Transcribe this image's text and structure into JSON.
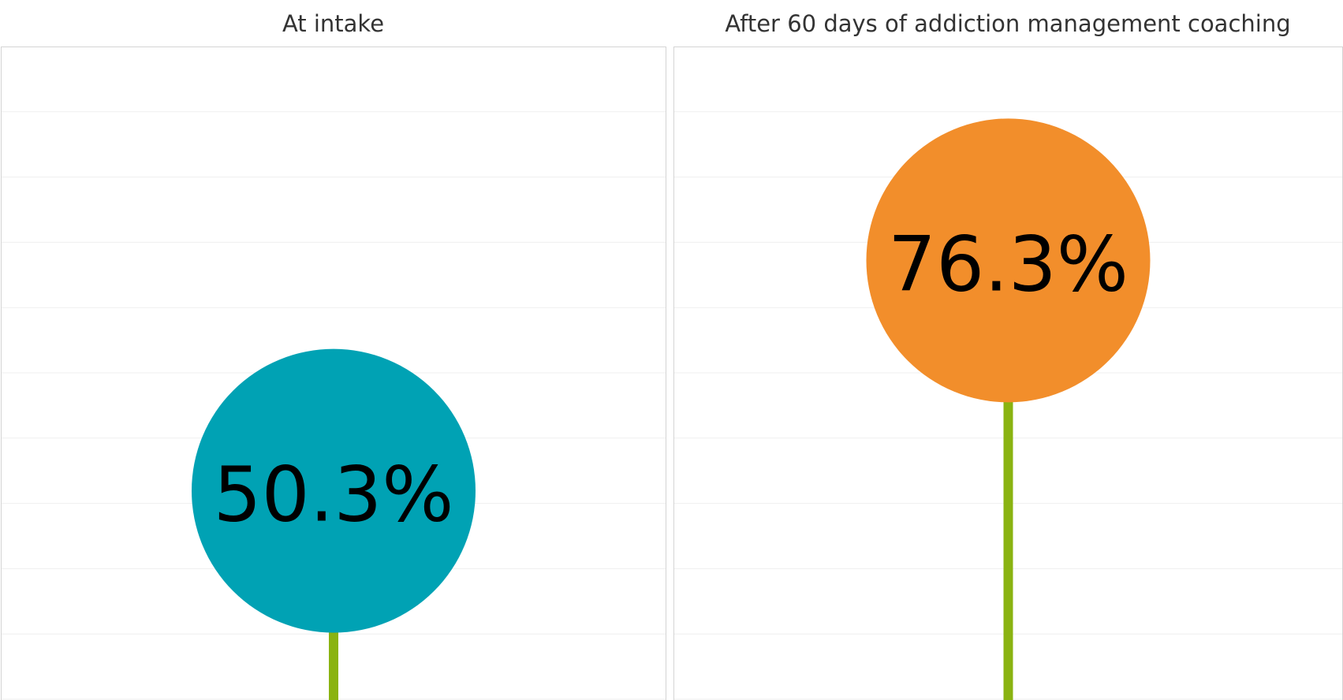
{
  "chart_data": {
    "type": "lollipop",
    "y_range": [
      0,
      100
    ],
    "grid": true,
    "panels": [
      {
        "title": "At intake",
        "value": 50.3,
        "label": "50.3%",
        "circle_color": "#00A2B4",
        "stem_color": "#8AB311"
      },
      {
        "title": "After 60 days of addiction management coaching",
        "value": 76.3,
        "label": "76.3%",
        "circle_color": "#F28E2B",
        "stem_color": "#8AB311"
      }
    ]
  }
}
